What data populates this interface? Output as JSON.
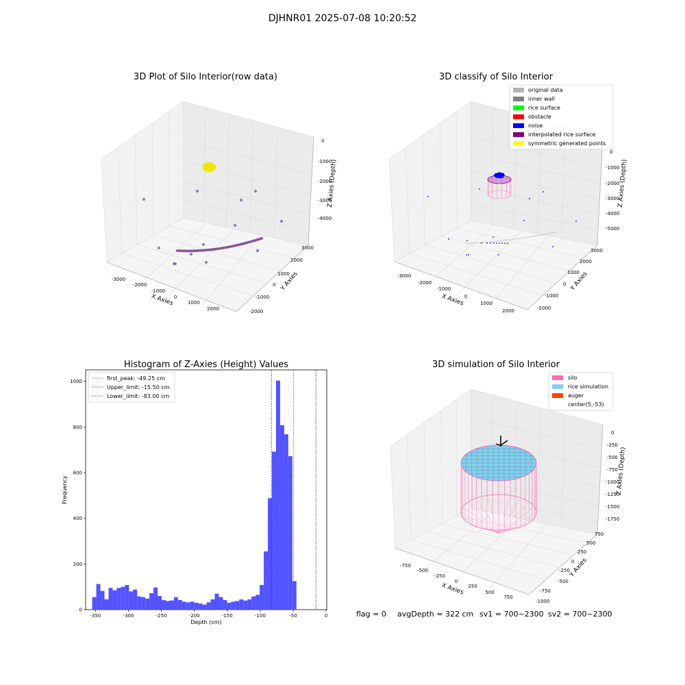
{
  "suptitle": "DJHNR01 2025-07-08 10:20:52",
  "footer": {
    "flag": "flag = 0",
    "avg_depth": "avgDepth = 322 cm",
    "sv1": "sv1 = 700~2300",
    "sv2": "sv2 = 700~2300"
  },
  "chart_data": [
    {
      "type": "scatter",
      "title": "3D Plot of Silo Interior(row data)",
      "xlabel": "X Axies",
      "ylabel": "Y Axies",
      "zlabel": "Z Axies (Depth)",
      "xticks": [
        "-3000",
        "-2000",
        "-1000",
        "0",
        "1000",
        "2000"
      ],
      "yticks": [
        "-2000",
        "-1000",
        "0",
        "1000",
        "2000",
        "3000"
      ],
      "zticks": [
        "0",
        "-1000",
        "-2000",
        "-3000",
        "-4000"
      ],
      "colors": {
        "rice_cluster": "#f2e600",
        "points": "#5b6fa8",
        "arc": "#7a3e8a"
      }
    },
    {
      "type": "scatter",
      "title": "3D classify of Silo Interior",
      "xlabel": "X Axies",
      "ylabel": "Y Axies",
      "zlabel": "Z Axies (Depth)",
      "xticks": [
        "-3000",
        "-2000",
        "-1000",
        "0",
        "1000",
        "2000"
      ],
      "yticks": [
        "-2000",
        "-1000",
        "0",
        "1000",
        "2000",
        "3000"
      ],
      "zticks": [
        "0",
        "-1000",
        "-2000",
        "-3000",
        "-4000",
        "-5000"
      ],
      "legend": [
        {
          "label": "original data",
          "color": "#b3b3b3"
        },
        {
          "label": "inner wall",
          "color": "#808080"
        },
        {
          "label": "rice surface",
          "color": "#00ff00"
        },
        {
          "label": "obstacle",
          "color": "#ff0000"
        },
        {
          "label": "noise",
          "color": "#0000ff"
        },
        {
          "label": "interpolated rice surface",
          "color": "#800080"
        },
        {
          "label": "symmetric generated points",
          "color": "#ffff00"
        }
      ],
      "legend_position": "top-right"
    },
    {
      "type": "bar",
      "title": "Histogram of Z-Axies (Height) Values",
      "xlabel": "Depth (cm)",
      "ylabel": "Frequency",
      "xlim": [
        -365,
        1
      ],
      "ylim": [
        0,
        1050
      ],
      "xticks": [
        -350,
        -300,
        -250,
        -200,
        -150,
        -100,
        -50,
        0
      ],
      "yticks": [
        0,
        200,
        400,
        600,
        800,
        1000
      ],
      "bin_width": 6.2,
      "bin_start": -355,
      "values": [
        55,
        112,
        82,
        45,
        95,
        85,
        95,
        100,
        108,
        80,
        88,
        58,
        55,
        48,
        72,
        97,
        60,
        42,
        38,
        40,
        55,
        42,
        35,
        32,
        35,
        30,
        27,
        22,
        32,
        45,
        70,
        55,
        42,
        30,
        35,
        38,
        45,
        40,
        45,
        58,
        65,
        108,
        255,
        488,
        692,
        1003,
        808,
        768,
        672,
        125
      ],
      "bar_color": "#5050ff",
      "vlines": [
        {
          "label": "first_peak: -49.25 cm",
          "x": -49.25,
          "color": "#e03030"
        },
        {
          "label": "Upper_limit: -15.50 cm",
          "x": -15.5,
          "color": "#2020c0"
        },
        {
          "label": "Lower_limit: -83.00 cm",
          "x": -83.0,
          "color": "#2020c0"
        }
      ],
      "legend_position": "top-left"
    },
    {
      "type": "scatter",
      "title": "3D simulation of Silo Interior",
      "xlabel": "X Axies",
      "ylabel": "Y Axies",
      "zlabel": "Z Axies (Depth)",
      "xticks": [
        "-750",
        "-500",
        "-250",
        "0",
        "250",
        "500",
        "750"
      ],
      "yticks": [
        "-1000",
        "-750",
        "-500",
        "-250",
        "0",
        "250",
        "500",
        "750"
      ],
      "zticks": [
        "0",
        "-250",
        "-500",
        "-750",
        "-1000",
        "-1250",
        "-1500",
        "-1750"
      ],
      "legend": [
        {
          "label": "silo",
          "color": "#ff69b4"
        },
        {
          "label": "rice simulation",
          "color": "#87ceeb"
        },
        {
          "label": "auger",
          "color": "#ff4500"
        },
        {
          "label": "center(5,-53)",
          "color": ""
        }
      ],
      "legend_position": "top-right"
    }
  ]
}
